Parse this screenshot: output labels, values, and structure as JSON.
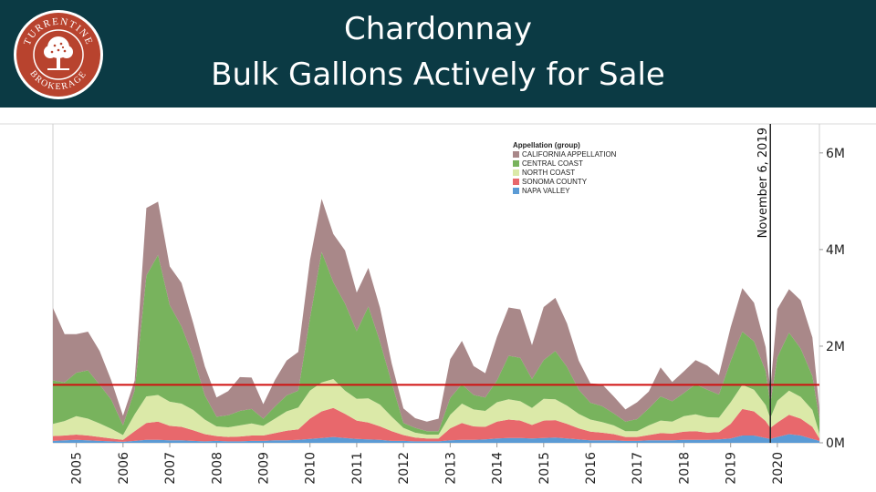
{
  "header": {
    "title_line1": "Chardonnay",
    "title_line2": "Bulk Gallons Actively for Sale",
    "logo_text_top": "TURRENTINE",
    "logo_text_bottom": "BROKERAGE"
  },
  "colors": {
    "header_bg": "#0b3a44",
    "california": "#a98889",
    "central_coast": "#78b35d",
    "north_coast": "#dbe9a8",
    "sonoma": "#e8686c",
    "napa": "#5b9bd5",
    "reference_line": "#d01010"
  },
  "chart_data": {
    "type": "area",
    "stacked": true,
    "title": "Chardonnay Bulk Gallons Actively for Sale",
    "xlabel": "",
    "ylabel": "",
    "x_unit": "year",
    "xlim": [
      2004.5,
      2020.9
    ],
    "ylim": [
      0,
      6600000
    ],
    "y_ticks": [
      0,
      2000000,
      4000000,
      6000000
    ],
    "y_tick_labels": [
      "0M",
      "2M",
      "4M",
      "6M"
    ],
    "x_ticks": [
      2005,
      2006,
      2007,
      2008,
      2009,
      2010,
      2011,
      2012,
      2013,
      2014,
      2015,
      2016,
      2017,
      2018,
      2019,
      2020
    ],
    "x_tick_labels": [
      "2005",
      "2006",
      "2007",
      "2008",
      "2009",
      "2010",
      "2011",
      "2012",
      "2013",
      "2014",
      "2015",
      "2016",
      "2017",
      "2018",
      "2019",
      "2020"
    ],
    "legend_title": "Appellation (group)",
    "legend_position": "top-center",
    "legend": [
      "CALIFORNIA APPELLATION",
      "CENTRAL COAST",
      "NORTH COAST",
      "SONOMA COUNTY",
      "NAPA VALLEY"
    ],
    "reference_line": {
      "y": 1200000
    },
    "annotation": {
      "x": 2019.85,
      "label": "November 6, 2019"
    },
    "x": [
      2004.5,
      2004.75,
      2005,
      2005.25,
      2005.5,
      2005.75,
      2006,
      2006.25,
      2006.5,
      2006.75,
      2007,
      2007.25,
      2007.5,
      2007.75,
      2008,
      2008.25,
      2008.5,
      2008.75,
      2009,
      2009.25,
      2009.5,
      2009.75,
      2010,
      2010.25,
      2010.5,
      2010.75,
      2011,
      2011.25,
      2011.5,
      2011.75,
      2012,
      2012.25,
      2012.5,
      2012.75,
      2013,
      2013.25,
      2013.5,
      2013.75,
      2014,
      2014.25,
      2014.5,
      2014.75,
      2015,
      2015.25,
      2015.5,
      2015.75,
      2016,
      2016.25,
      2016.5,
      2016.75,
      2017,
      2017.25,
      2017.5,
      2017.75,
      2018,
      2018.25,
      2018.5,
      2018.75,
      2019,
      2019.25,
      2019.5,
      2019.75,
      2019.85,
      2020,
      2020.25,
      2020.5,
      2020.75,
      2020.9
    ],
    "series": [
      {
        "name": "NAPA VALLEY",
        "values": [
          40000,
          50000,
          60000,
          50000,
          40000,
          30000,
          20000,
          40000,
          60000,
          60000,
          50000,
          50000,
          40000,
          30000,
          40000,
          30000,
          30000,
          40000,
          40000,
          50000,
          50000,
          60000,
          80000,
          100000,
          120000,
          100000,
          80000,
          70000,
          60000,
          40000,
          40000,
          30000,
          30000,
          30000,
          50000,
          60000,
          60000,
          70000,
          90000,
          100000,
          100000,
          90000,
          100000,
          110000,
          90000,
          70000,
          50000,
          50000,
          50000,
          40000,
          40000,
          50000,
          50000,
          50000,
          60000,
          60000,
          60000,
          70000,
          90000,
          150000,
          150000,
          100000,
          80000,
          120000,
          180000,
          150000,
          80000,
          40000
        ]
      },
      {
        "name": "SONOMA COUNTY",
        "values": [
          100000,
          100000,
          110000,
          100000,
          80000,
          60000,
          40000,
          200000,
          350000,
          380000,
          300000,
          280000,
          220000,
          150000,
          100000,
          90000,
          100000,
          110000,
          110000,
          150000,
          200000,
          220000,
          420000,
          550000,
          600000,
          500000,
          380000,
          350000,
          280000,
          200000,
          120000,
          80000,
          60000,
          60000,
          250000,
          350000,
          280000,
          260000,
          350000,
          380000,
          360000,
          280000,
          360000,
          360000,
          300000,
          230000,
          180000,
          160000,
          130000,
          80000,
          80000,
          110000,
          150000,
          140000,
          170000,
          180000,
          150000,
          150000,
          300000,
          550000,
          500000,
          350000,
          230000,
          300000,
          400000,
          350000,
          250000,
          50000
        ]
      },
      {
        "name": "NORTH COAST",
        "values": [
          250000,
          300000,
          380000,
          350000,
          280000,
          200000,
          100000,
          350000,
          550000,
          550000,
          500000,
          480000,
          420000,
          300000,
          200000,
          200000,
          230000,
          250000,
          200000,
          300000,
          400000,
          450000,
          580000,
          600000,
          600000,
          480000,
          450000,
          500000,
          450000,
          300000,
          150000,
          100000,
          80000,
          80000,
          280000,
          400000,
          350000,
          330000,
          400000,
          420000,
          400000,
          350000,
          450000,
          430000,
          380000,
          300000,
          250000,
          220000,
          180000,
          120000,
          120000,
          200000,
          260000,
          250000,
          320000,
          350000,
          320000,
          300000,
          450000,
          500000,
          450000,
          330000,
          200000,
          450000,
          500000,
          450000,
          350000,
          100000
        ]
      },
      {
        "name": "CENTRAL COAST",
        "values": [
          900000,
          800000,
          900000,
          1000000,
          800000,
          600000,
          200000,
          500000,
          2500000,
          2900000,
          2000000,
          1600000,
          1100000,
          500000,
          200000,
          250000,
          300000,
          300000,
          150000,
          250000,
          330000,
          350000,
          1500000,
          2700000,
          2000000,
          1800000,
          1400000,
          1900000,
          1300000,
          700000,
          100000,
          100000,
          70000,
          70000,
          350000,
          400000,
          300000,
          280000,
          450000,
          900000,
          900000,
          600000,
          800000,
          1000000,
          800000,
          500000,
          350000,
          330000,
          250000,
          200000,
          250000,
          350000,
          500000,
          420000,
          480000,
          620000,
          570000,
          480000,
          850000,
          1100000,
          1000000,
          700000,
          300000,
          900000,
          1200000,
          1000000,
          700000,
          300000
        ]
      },
      {
        "name": "CALIFORNIA APPELLATION",
        "values": [
          1500000,
          1000000,
          800000,
          800000,
          700000,
          400000,
          200000,
          200000,
          1400000,
          1100000,
          800000,
          900000,
          700000,
          600000,
          400000,
          500000,
          700000,
          650000,
          300000,
          550000,
          720000,
          800000,
          1200000,
          1100000,
          1000000,
          1100000,
          800000,
          800000,
          700000,
          400000,
          300000,
          200000,
          200000,
          260000,
          800000,
          900000,
          600000,
          500000,
          900000,
          1000000,
          1000000,
          700000,
          1100000,
          1100000,
          900000,
          600000,
          400000,
          450000,
          350000,
          250000,
          350000,
          350000,
          600000,
          400000,
          450000,
          500000,
          500000,
          400000,
          700000,
          900000,
          800000,
          500000,
          300000,
          1000000,
          900000,
          1000000,
          800000,
          200000
        ]
      }
    ]
  }
}
